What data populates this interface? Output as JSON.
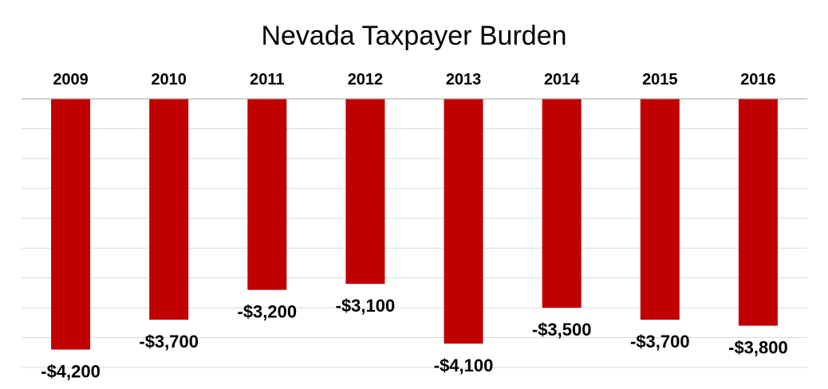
{
  "chart_data": {
    "type": "bar",
    "title": "Nevada Taxpayer Burden",
    "categories": [
      "2009",
      "2010",
      "2011",
      "2012",
      "2013",
      "2014",
      "2015",
      "2016"
    ],
    "values": [
      -4200,
      -3700,
      -3200,
      -3100,
      -4100,
      -3500,
      -3700,
      -3800
    ],
    "labels": [
      "-$4,200",
      "-$3,700",
      "-$3,200",
      "-$3,100",
      "-$4,100",
      "-$3,500",
      "-$3,700",
      "-$3,800"
    ],
    "ylim": [
      -4500,
      0
    ],
    "grid": true,
    "bar_color": "#C00000"
  }
}
